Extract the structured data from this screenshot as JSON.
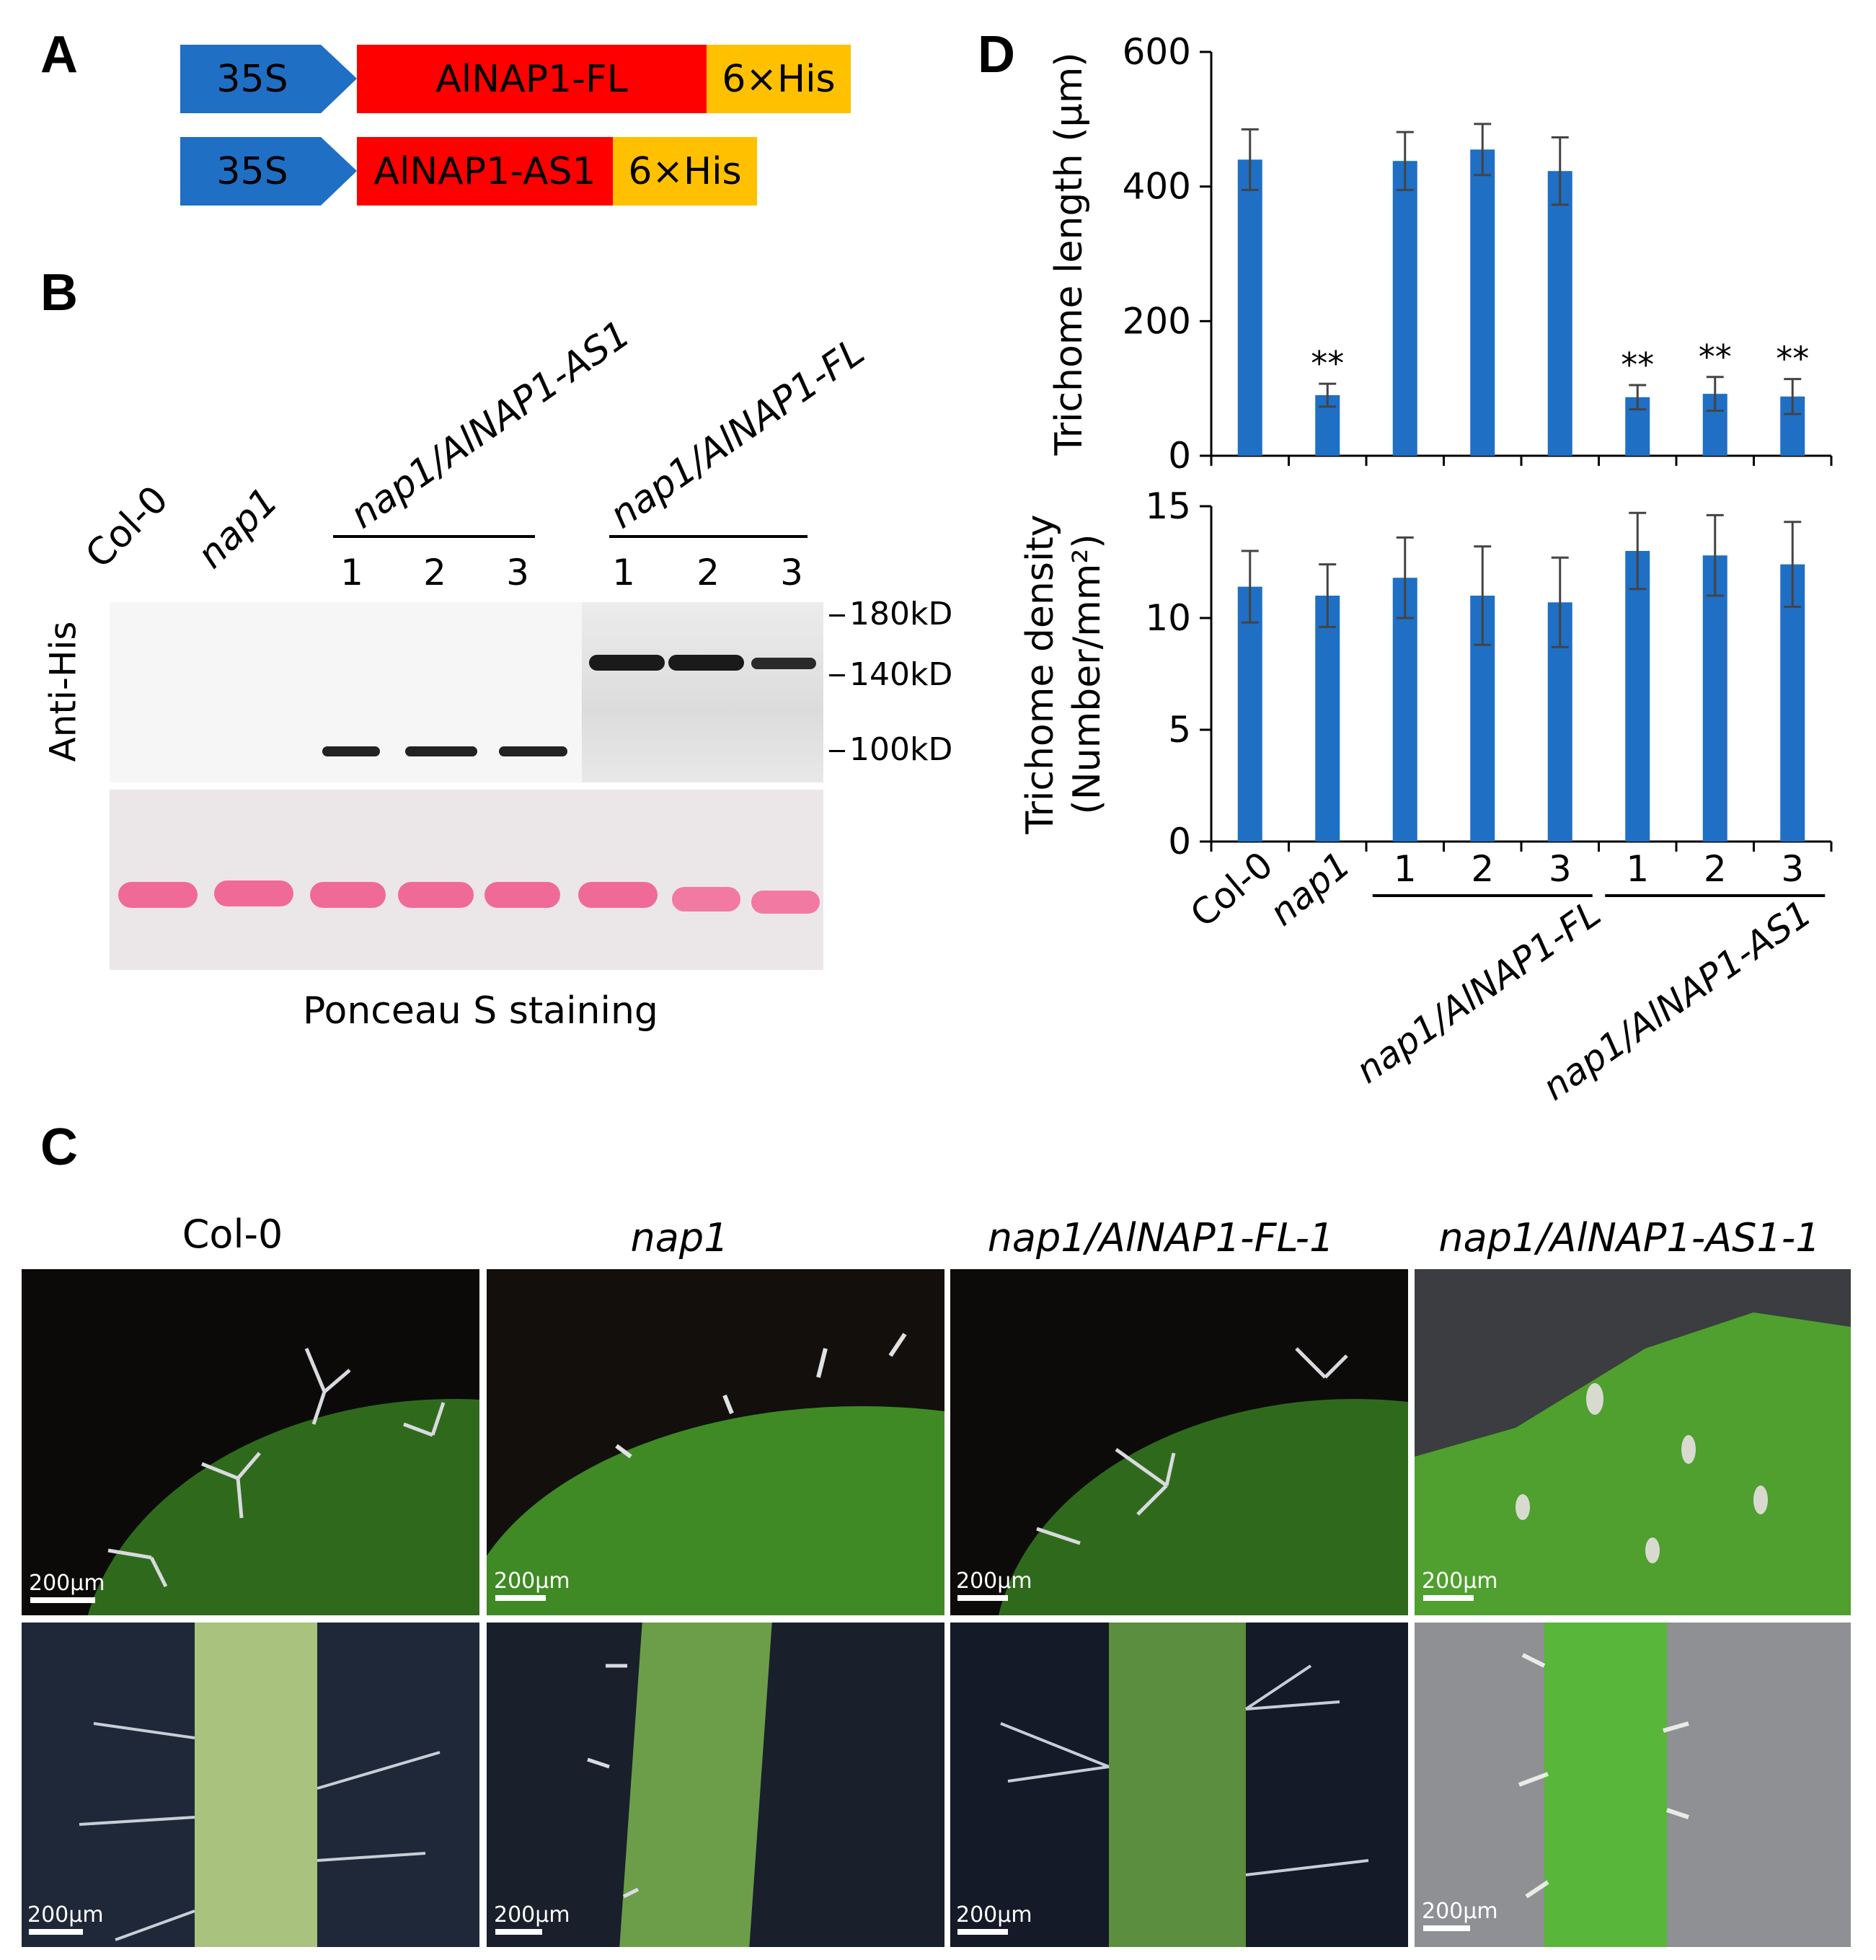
{
  "panels": {
    "a": "A",
    "b": "B",
    "c": "C",
    "d": "D"
  },
  "construct_fl": {
    "promoter": "35S",
    "gene": "AlNAP1-FL",
    "tag": "6×His"
  },
  "construct_as1": {
    "promoter": "35S",
    "gene": "AlNAP1-AS1",
    "tag": "6×His"
  },
  "colors": {
    "promoter": "#1f6fc4",
    "gene": "#ff0000",
    "tag": "#ffc000",
    "bar": "#1f6fc4",
    "ponceau": "#f3a6c2"
  },
  "blot": {
    "label_col0": "Col-0",
    "label_nap1": "nap1",
    "group_as1": "nap1/AlNAP1-AS1",
    "group_fl": "nap1/AlNAP1-FL",
    "lanes": [
      "1",
      "2",
      "3",
      "1",
      "2",
      "3"
    ],
    "antibody": "Anti-His",
    "mw": [
      "180kD",
      "140kD",
      "100kD"
    ],
    "staining": "Ponceau S staining"
  },
  "photos": {
    "titles": [
      "Col-0",
      "nap1",
      "nap1/AlNAP1-FL-1",
      "nap1/AlNAP1-AS1-1"
    ],
    "scale": "200μm"
  },
  "chart_data": [
    {
      "type": "bar",
      "ylabel": "Trichome length (μm)",
      "ylim": [
        0,
        600
      ],
      "yticks": [
        0,
        200,
        400,
        600
      ],
      "categories": [
        "Col-0",
        "nap1",
        "FL-1",
        "FL-2",
        "FL-3",
        "AS1-1",
        "AS1-2",
        "AS1-3"
      ],
      "values": [
        440,
        90,
        438,
        455,
        423,
        87,
        92,
        88
      ],
      "errors": [
        45,
        17,
        43,
        38,
        50,
        18,
        25,
        26
      ],
      "significance": [
        "",
        "**",
        "",
        "",
        "",
        "**",
        "**",
        "**"
      ]
    },
    {
      "type": "bar",
      "ylabel_line1": "Trichome density",
      "ylabel_line2": "(Number/mm²)",
      "ylim": [
        0,
        15
      ],
      "yticks": [
        0,
        5,
        10,
        15
      ],
      "categories": [
        "Col-0",
        "nap1",
        "FL-1",
        "FL-2",
        "FL-3",
        "AS1-1",
        "AS1-2",
        "AS1-3"
      ],
      "values": [
        11.4,
        11.0,
        11.8,
        11.0,
        10.7,
        13.0,
        12.8,
        12.4
      ],
      "errors": [
        1.6,
        1.4,
        1.8,
        2.2,
        2.0,
        1.7,
        1.8,
        1.9
      ],
      "xlabels": [
        "Col-0",
        "nap1",
        "1",
        "2",
        "3",
        "1",
        "2",
        "3"
      ],
      "group_fl": "nap1/AlNAP1-FL",
      "group_as1": "nap1/AlNAP1-AS1"
    }
  ]
}
